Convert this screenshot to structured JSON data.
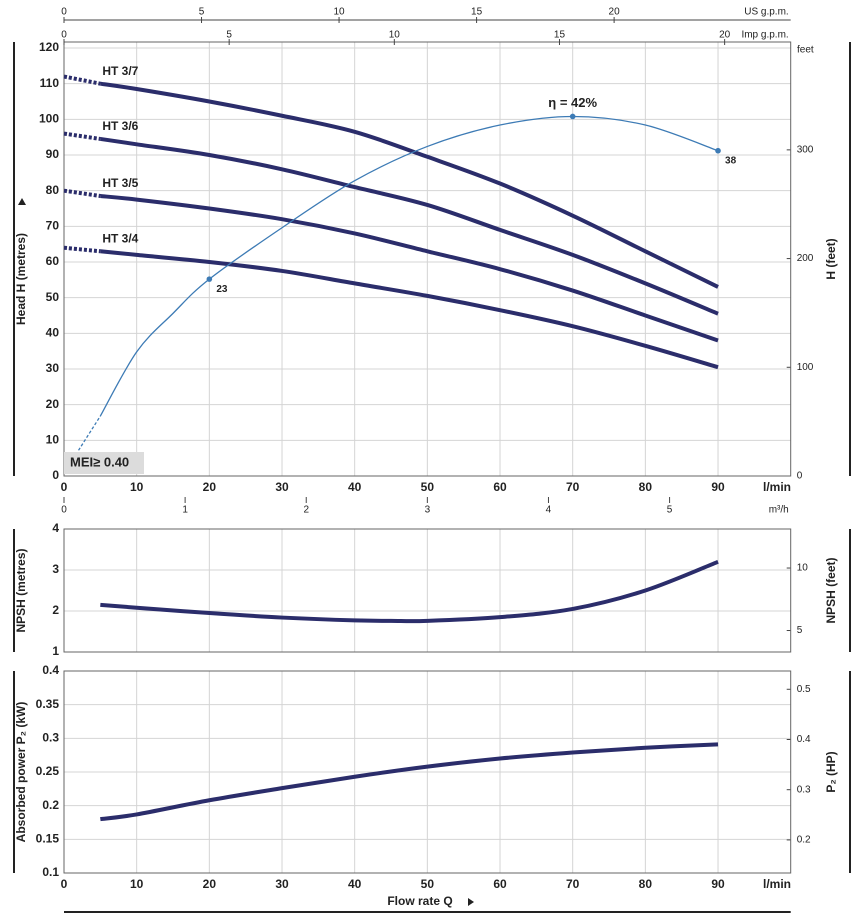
{
  "chart_data": [
    {
      "type": "line",
      "ylabel": "Head  H  (metres)",
      "y2label": "H  (feet)",
      "y2unit": "feet",
      "xunit": "l/min",
      "xlim": [
        0,
        100
      ],
      "xticks": [
        0,
        10,
        20,
        30,
        40,
        50,
        60,
        70,
        80,
        90
      ],
      "ylim": [
        0,
        120
      ],
      "yticks": [
        0,
        10,
        20,
        30,
        40,
        50,
        60,
        70,
        80,
        90,
        100,
        110,
        120
      ],
      "y2lim": [
        0,
        393.7
      ],
      "y2ticks": [
        0,
        100,
        200,
        300
      ],
      "grid": true,
      "secondary_x": [
        {
          "position": "top",
          "label": "US g.p.m.",
          "lim": [
            0,
            26.42
          ],
          "ticks": [
            0,
            5,
            10,
            15,
            20
          ]
        },
        {
          "position": "top-inner",
          "label": "Imp g.p.m.",
          "lim": [
            0,
            22
          ],
          "ticks": [
            0,
            5,
            10,
            15,
            20
          ]
        },
        {
          "position": "bottom-outer",
          "label": "m³/h",
          "lim": [
            0,
            6
          ],
          "ticks": [
            0,
            1,
            2,
            3,
            4,
            5
          ]
        }
      ],
      "series": [
        {
          "name": "HT 3/7",
          "color": "#2b2d6b",
          "dashed_first": true,
          "x": [
            0,
            5,
            10,
            20,
            30,
            40,
            50,
            60,
            70,
            80,
            90
          ],
          "values": [
            112,
            110,
            108.5,
            105,
            101,
            96.5,
            89.5,
            82,
            73,
            63,
            53
          ]
        },
        {
          "name": "HT 3/6",
          "color": "#2b2d6b",
          "dashed_first": true,
          "x": [
            0,
            5,
            10,
            20,
            30,
            40,
            50,
            60,
            70,
            80,
            90
          ],
          "values": [
            96,
            94.5,
            93,
            90,
            86,
            81,
            76,
            69,
            62,
            54,
            45.5
          ]
        },
        {
          "name": "HT 3/5",
          "color": "#2b2d6b",
          "dashed_first": true,
          "x": [
            0,
            5,
            10,
            20,
            30,
            40,
            50,
            60,
            70,
            80,
            90
          ],
          "values": [
            80,
            78.5,
            77.5,
            75,
            72,
            68,
            63,
            58,
            52,
            45,
            38
          ]
        },
        {
          "name": "HT 3/4",
          "color": "#2b2d6b",
          "dashed_first": true,
          "x": [
            0,
            5,
            10,
            20,
            30,
            40,
            50,
            60,
            70,
            80,
            90
          ],
          "values": [
            64,
            63,
            62,
            60,
            57.5,
            54,
            50.5,
            46.5,
            42,
            36.5,
            30.5
          ]
        }
      ],
      "efficiency": {
        "color": "#3d7bb5",
        "dashed_first": true,
        "ylim": [
          0,
          50
        ],
        "x": [
          2,
          5,
          10,
          15,
          20,
          30,
          40,
          50,
          60,
          70,
          80,
          90
        ],
        "values": [
          3,
          7,
          14.5,
          19,
          23,
          29,
          34.5,
          38.5,
          41,
          42,
          41,
          38
        ],
        "markers": [
          {
            "x": 20,
            "value": 23
          },
          {
            "x": 70,
            "value": 42,
            "label": "η = 42%"
          },
          {
            "x": 90,
            "value": 38
          }
        ]
      },
      "annotation": "MEI≥ 0.40"
    },
    {
      "type": "line",
      "ylabel": "NPSH  (metres)",
      "y2label": "NPSH  (feet)",
      "xlim": [
        0,
        100
      ],
      "xticks": [
        0,
        10,
        20,
        30,
        40,
        50,
        60,
        70,
        80,
        90
      ],
      "xtick_labels": false,
      "ylim": [
        1,
        4
      ],
      "yticks": [
        1,
        2,
        3,
        4
      ],
      "y2lim": [
        3.281,
        13.123
      ],
      "y2ticks": [
        5,
        10
      ],
      "grid": true,
      "series": [
        {
          "color": "#2b2d6b",
          "x": [
            5,
            10,
            20,
            30,
            40,
            45,
            50,
            60,
            70,
            80,
            90
          ],
          "values": [
            2.15,
            2.08,
            1.95,
            1.84,
            1.77,
            1.76,
            1.76,
            1.85,
            2.05,
            2.5,
            3.2
          ]
        }
      ]
    },
    {
      "type": "line",
      "ylabel": "Absorbed power  P₂  (kW)",
      "y2label": "P₂  (HP)",
      "xlabel": "Flow rate  Q",
      "xunit": "l/min",
      "xlim": [
        0,
        100
      ],
      "xticks": [
        0,
        10,
        20,
        30,
        40,
        50,
        60,
        70,
        80,
        90
      ],
      "ylim": [
        0.1,
        0.4
      ],
      "yticks": [
        0.1,
        0.15,
        0.2,
        0.25,
        0.3,
        0.35,
        0.4
      ],
      "y2lim": [
        0.1341,
        0.5364
      ],
      "y2ticks": [
        0.2,
        0.3,
        0.4,
        0.5
      ],
      "grid": true,
      "series": [
        {
          "color": "#2b2d6b",
          "x": [
            5,
            10,
            20,
            30,
            40,
            50,
            60,
            70,
            80,
            90
          ],
          "values": [
            0.18,
            0.187,
            0.208,
            0.226,
            0.243,
            0.258,
            0.27,
            0.279,
            0.286,
            0.291
          ]
        }
      ]
    }
  ]
}
